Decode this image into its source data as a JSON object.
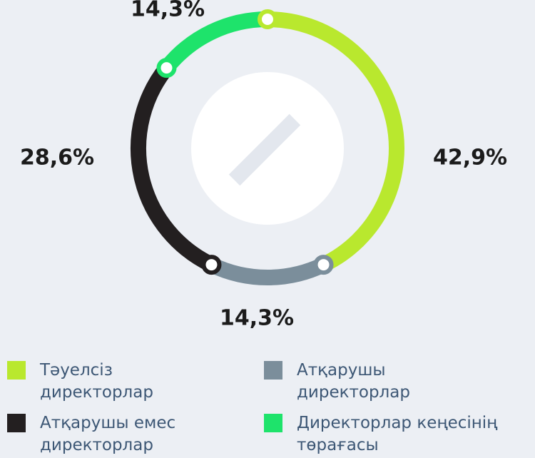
{
  "chart_data": {
    "type": "donut",
    "categories": [
      "Тәуелсіз директорлар",
      "Атқарушы директорлар",
      "Атқарушы емес директорлар",
      "Директорлар кеңесінің төрағасы"
    ],
    "values": [
      42.9,
      14.3,
      28.6,
      14.3
    ],
    "value_labels": [
      "42,9%",
      "14,3%",
      "28,6%",
      "14,3%"
    ],
    "colors": [
      "#b9e82e",
      "#7b8e9b",
      "#231f20",
      "#1ee36b"
    ]
  }
}
